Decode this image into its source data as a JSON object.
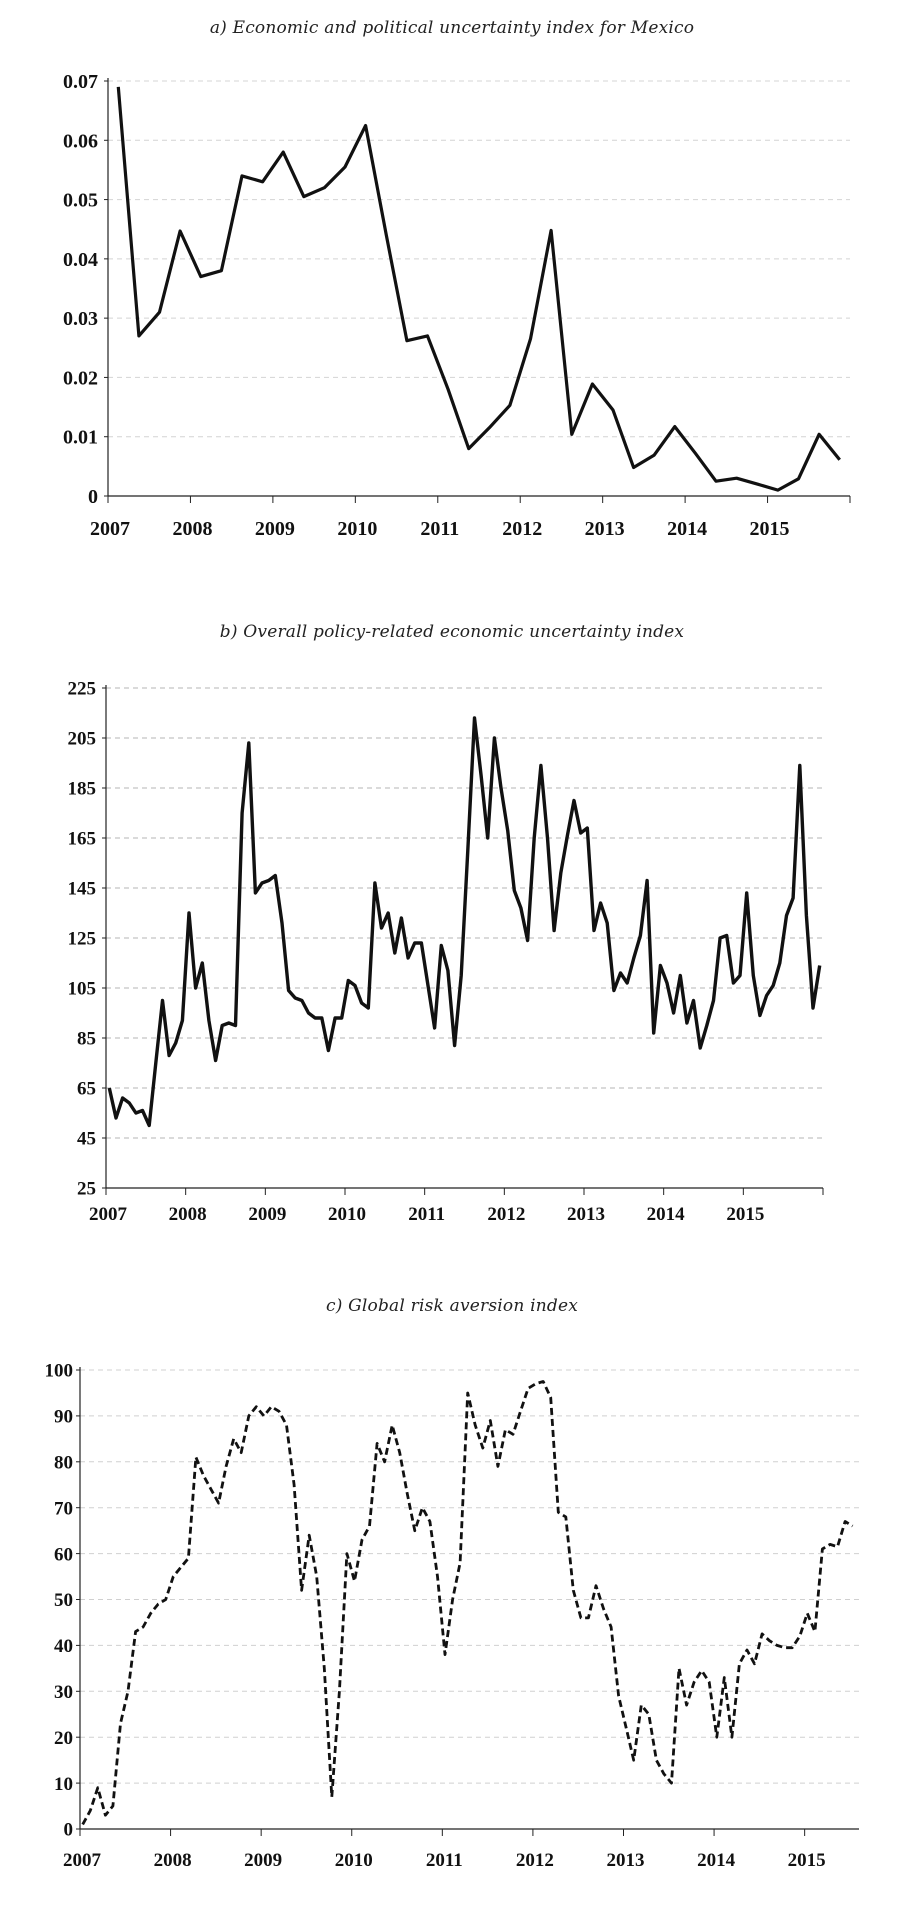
{
  "chart_data": [
    {
      "type": "line",
      "title": "a) Economic and political uncertainty index for Mexico",
      "xlabel": "",
      "ylabel": "",
      "xlim": [
        2007,
        2016
      ],
      "ylim": [
        0,
        0.07
      ],
      "xticks": [
        "2007",
        "2008",
        "2009",
        "2010",
        "2011",
        "2012",
        "2013",
        "2014",
        "2015"
      ],
      "yticks": [
        "0",
        "0.01",
        "0.02",
        "0.03",
        "0.04",
        "0.05",
        "0.06",
        "0.07"
      ],
      "grid": true,
      "line_style": "solid",
      "x_start": 2007.125,
      "x_step": 0.25,
      "values": [
        0.069,
        0.027,
        0.031,
        0.0447,
        0.037,
        0.038,
        0.054,
        0.053,
        0.058,
        0.0505,
        0.052,
        0.0555,
        0.0625,
        0.044,
        0.0262,
        0.027,
        0.018,
        0.008,
        0.0115,
        0.0153,
        0.0265,
        0.0448,
        0.0104,
        0.0189,
        0.0145,
        0.0048,
        0.0069,
        0.0117,
        0.0072,
        0.0025,
        0.003,
        0.002,
        0.001,
        0.0029,
        0.0104,
        0.0061
      ]
    },
    {
      "type": "line",
      "title": "b) Overall policy-related economic uncertainty index",
      "xlabel": "",
      "ylabel": "",
      "xlim": [
        2007,
        2016
      ],
      "ylim": [
        25,
        225
      ],
      "xticks": [
        "2007",
        "2008",
        "2009",
        "2010",
        "2011",
        "2012",
        "2013",
        "2014",
        "2015"
      ],
      "yticks": [
        "25",
        "45",
        "65",
        "85",
        "105",
        "125",
        "145",
        "165",
        "185",
        "205",
        "225"
      ],
      "grid": true,
      "line_style": "solid",
      "x_start": 2007.042,
      "x_step": 0.08333,
      "values": [
        65,
        53,
        61,
        59,
        55,
        56,
        50,
        75,
        100,
        78,
        83,
        92,
        135,
        105,
        115,
        92,
        76,
        90,
        91,
        90,
        175,
        203,
        143,
        147,
        148,
        150,
        131,
        104,
        101,
        100,
        95,
        93,
        93,
        80,
        93,
        93,
        108,
        106,
        99,
        97,
        147,
        129,
        135,
        119,
        133,
        117,
        123,
        123,
        106,
        89,
        122,
        112,
        82,
        110,
        160,
        213,
        190,
        165,
        205,
        185,
        168,
        144,
        137,
        124,
        165,
        194,
        165,
        128,
        151,
        166,
        180,
        167,
        169,
        128,
        139,
        131,
        104,
        111,
        107,
        117,
        126,
        148,
        87,
        114,
        107,
        95,
        110,
        91,
        100,
        81,
        90,
        100,
        125,
        126,
        107,
        110,
        143,
        110,
        94,
        102,
        106,
        115,
        134,
        141,
        194,
        134,
        97,
        114
      ]
    },
    {
      "type": "line",
      "title": "c) Global risk aversion index",
      "xlabel": "",
      "ylabel": "",
      "xlim": [
        2007,
        2015.6
      ],
      "ylim": [
        0,
        100
      ],
      "xticks": [
        "2007",
        "2008",
        "2009",
        "2010",
        "2011",
        "2012",
        "2013",
        "2014",
        "2015"
      ],
      "yticks": [
        "0",
        "10",
        "20",
        "30",
        "40",
        "50",
        "60",
        "70",
        "80",
        "90",
        "100"
      ],
      "grid": true,
      "line_style": "dashed",
      "x_start": 2007.03,
      "x_step": 0.08333,
      "values": [
        1,
        4,
        9,
        3,
        5,
        23,
        30,
        43,
        44,
        47,
        49,
        50,
        55,
        57,
        59,
        81,
        77,
        74,
        71,
        79,
        85,
        82,
        90,
        92,
        90,
        92,
        91,
        88,
        75,
        52,
        64,
        55,
        35,
        7,
        30,
        60,
        54,
        63,
        66,
        84,
        80,
        88,
        82,
        73,
        65,
        70,
        67,
        55,
        38,
        50,
        58,
        95,
        88,
        83,
        89,
        79,
        87,
        86,
        91,
        96,
        97,
        97.5,
        94,
        69,
        68,
        52,
        46,
        46,
        53,
        48,
        44,
        29,
        22,
        15,
        27,
        25,
        15,
        12,
        10,
        35,
        27,
        32,
        34.5,
        32,
        20,
        33,
        20,
        36,
        39,
        36,
        42.5,
        41,
        40,
        39.5,
        39.5,
        42,
        47,
        43,
        61,
        62,
        61.5,
        67,
        66
      ]
    }
  ]
}
